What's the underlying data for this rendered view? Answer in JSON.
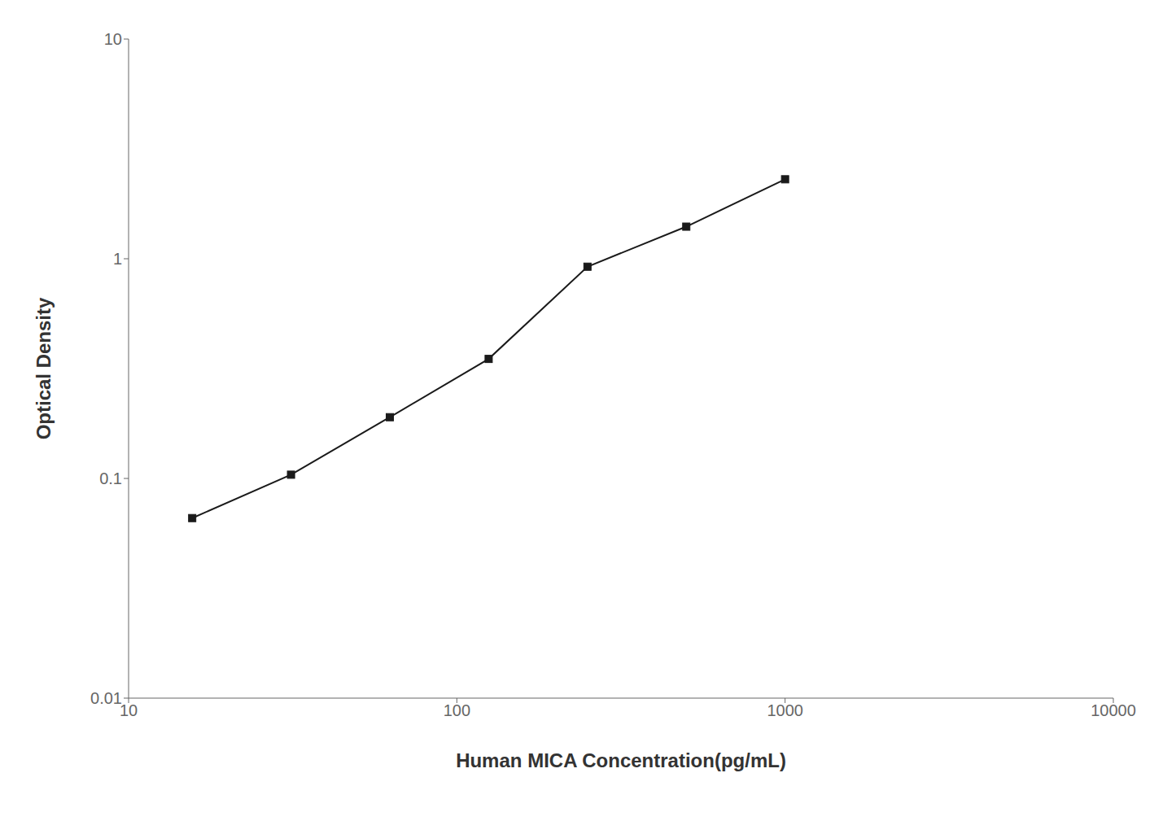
{
  "chart_data": {
    "type": "line",
    "x": [
      15.625,
      31.25,
      62.5,
      125,
      250,
      500,
      1000
    ],
    "values": [
      0.066,
      0.104,
      0.19,
      0.35,
      0.92,
      1.4,
      2.3
    ],
    "xlabel": "Human MICA Concentration(pg/mL)",
    "ylabel": "Optical Density",
    "xlim": [
      10,
      10000
    ],
    "ylim": [
      0.01,
      10
    ],
    "xticks": [
      10,
      100,
      1000,
      10000
    ],
    "yticks": [
      0.01,
      0.1,
      1,
      10
    ],
    "log": true,
    "grid": false,
    "color": "#1a1a1a",
    "marker": "square"
  }
}
